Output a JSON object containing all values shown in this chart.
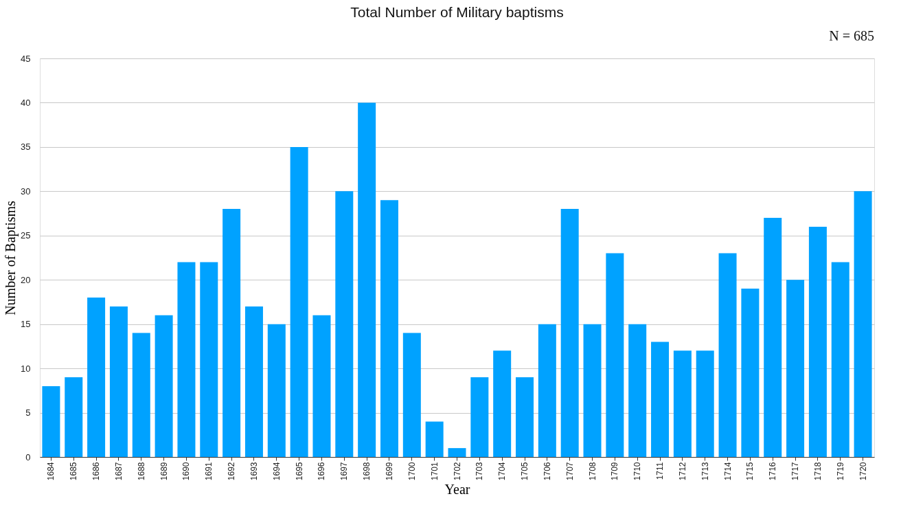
{
  "chart_data": {
    "type": "bar",
    "title": "Total Number of Military baptisms",
    "xlabel": "Year",
    "ylabel": "Number of Baptisms",
    "annotations": [
      "N = 685"
    ],
    "categories": [
      "1684",
      "1685",
      "1686",
      "1687",
      "1688",
      "1689",
      "1690",
      "1691",
      "1692",
      "1693",
      "1694",
      "1695",
      "1696",
      "1697",
      "1698",
      "1699",
      "1700",
      "1701",
      "1702",
      "1703",
      "1704",
      "1705",
      "1706",
      "1707",
      "1708",
      "1709",
      "1710",
      "1711",
      "1712",
      "1713",
      "1714",
      "1715",
      "1716",
      "1717",
      "1718",
      "1719",
      "1720"
    ],
    "values": [
      8,
      9,
      18,
      17,
      14,
      16,
      22,
      22,
      28,
      17,
      15,
      35,
      16,
      30,
      40,
      29,
      14,
      4,
      1,
      9,
      12,
      9,
      15,
      28,
      15,
      23,
      15,
      13,
      12,
      12,
      23,
      19,
      27,
      20,
      26,
      22,
      30
    ],
    "color": "#00a2ff",
    "ylim": [
      0,
      45
    ],
    "yticks": [
      0,
      5,
      10,
      15,
      20,
      25,
      30,
      35,
      40,
      45
    ],
    "grid": "y"
  }
}
